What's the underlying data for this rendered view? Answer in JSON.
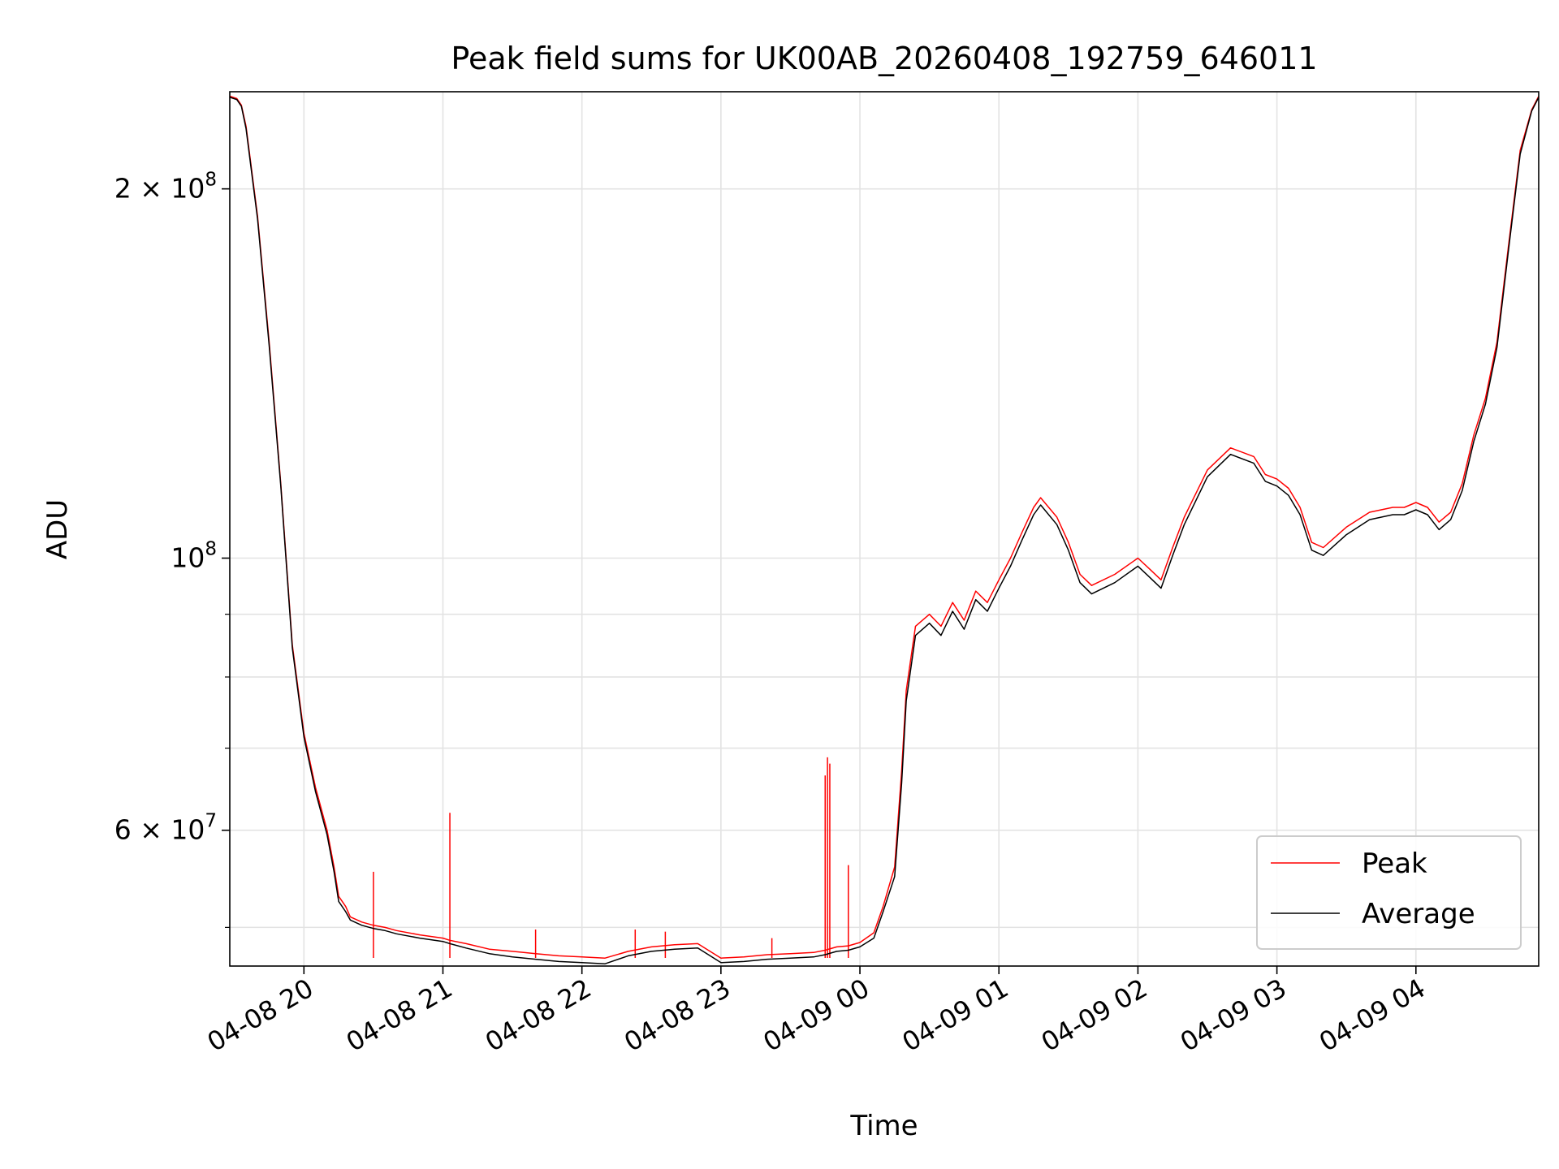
{
  "chart_data": {
    "type": "line",
    "title": "Peak field sums for UK00AB_20260408_192759_646011",
    "xlabel": "Time",
    "ylabel": "ADU",
    "yscale": "log",
    "ylim": [
      46500000,
      240000000
    ],
    "xlim": [
      "2026-04-08 19:28",
      "2026-04-09 04:53"
    ],
    "grid": true,
    "legend": "bottom-right",
    "colors": {
      "Peak": "#ff0000",
      "Average": "#000000"
    },
    "x_ticks": [
      "04-08 20",
      "04-08 21",
      "04-08 22",
      "04-08 23",
      "04-09 00",
      "04-09 01",
      "04-09 02",
      "04-09 03",
      "04-09 04"
    ],
    "y_ticks": [
      {
        "value": 200000000,
        "mantissa": "2",
        "exponent": "8"
      },
      {
        "value": 100000000,
        "mantissa": "",
        "exponent": "8"
      },
      {
        "value": 60000000,
        "mantissa": "6",
        "exponent": "7"
      }
    ],
    "y_minor_ticks": [
      50000000,
      70000000,
      80000000,
      90000000
    ],
    "series": [
      {
        "name": "Peak",
        "x": [
          "2026-04-08 19:28",
          "2026-04-08 19:31",
          "2026-04-08 19:33",
          "2026-04-08 19:35",
          "2026-04-08 19:40",
          "2026-04-08 19:45",
          "2026-04-08 19:50",
          "2026-04-08 19:55",
          "2026-04-08 20:00",
          "2026-04-08 20:05",
          "2026-04-08 20:10",
          "2026-04-08 20:13",
          "2026-04-08 20:15",
          "2026-04-08 20:18",
          "2026-04-08 20:20",
          "2026-04-08 20:25",
          "2026-04-08 20:30",
          "2026-04-08 20:35",
          "2026-04-08 20:40",
          "2026-04-08 20:50",
          "2026-04-08 21:00",
          "2026-04-08 21:03",
          "2026-04-08 21:10",
          "2026-04-08 21:20",
          "2026-04-08 21:30",
          "2026-04-08 21:40",
          "2026-04-08 21:50",
          "2026-04-08 22:00",
          "2026-04-08 22:10",
          "2026-04-08 22:20",
          "2026-04-08 22:30",
          "2026-04-08 22:40",
          "2026-04-08 22:50",
          "2026-04-08 23:00",
          "2026-04-08 23:10",
          "2026-04-08 23:20",
          "2026-04-08 23:30",
          "2026-04-08 23:40",
          "2026-04-08 23:45",
          "2026-04-08 23:50",
          "2026-04-08 23:55",
          "2026-04-09 00:00",
          "2026-04-09 00:06",
          "2026-04-09 00:10",
          "2026-04-09 00:15",
          "2026-04-09 00:18",
          "2026-04-09 00:20",
          "2026-04-09 00:24",
          "2026-04-09 00:30",
          "2026-04-09 00:35",
          "2026-04-09 00:40",
          "2026-04-09 00:45",
          "2026-04-09 00:50",
          "2026-04-09 00:55",
          "2026-04-09 01:00",
          "2026-04-09 01:05",
          "2026-04-09 01:10",
          "2026-04-09 01:15",
          "2026-04-09 01:18",
          "2026-04-09 01:25",
          "2026-04-09 01:30",
          "2026-04-09 01:35",
          "2026-04-09 01:40",
          "2026-04-09 01:50",
          "2026-04-09 02:00",
          "2026-04-09 02:05",
          "2026-04-09 02:10",
          "2026-04-09 02:15",
          "2026-04-09 02:20",
          "2026-04-09 02:30",
          "2026-04-09 02:40",
          "2026-04-09 02:50",
          "2026-04-09 02:55",
          "2026-04-09 03:00",
          "2026-04-09 03:05",
          "2026-04-09 03:10",
          "2026-04-09 03:15",
          "2026-04-09 03:20",
          "2026-04-09 03:30",
          "2026-04-09 03:40",
          "2026-04-09 03:50",
          "2026-04-09 03:55",
          "2026-04-09 04:00",
          "2026-04-09 04:05",
          "2026-04-09 04:10",
          "2026-04-09 04:15",
          "2026-04-09 04:20",
          "2026-04-09 04:25",
          "2026-04-09 04:30",
          "2026-04-09 04:35",
          "2026-04-09 04:40",
          "2026-04-09 04:45",
          "2026-04-09 04:50",
          "2026-04-09 04:53"
        ],
        "y": [
          238000000,
          237000000,
          234000000,
          225000000,
          190000000,
          150000000,
          115000000,
          85000000,
          72000000,
          65000000,
          60000000,
          56000000,
          53000000,
          52000000,
          51000000,
          50500000,
          50200000,
          50000000,
          49700000,
          49300000,
          49000000,
          48800000,
          48500000,
          48000000,
          47800000,
          47600000,
          47400000,
          47300000,
          47200000,
          47800000,
          48200000,
          48400000,
          48500000,
          47200000,
          47300000,
          47500000,
          47600000,
          47700000,
          47900000,
          48200000,
          48300000,
          48600000,
          49500000,
          52000000,
          56000000,
          67000000,
          78000000,
          88000000,
          90000000,
          88000000,
          92000000,
          89000000,
          94000000,
          92000000,
          96000000,
          100000000,
          105000000,
          110000000,
          112000000,
          108000000,
          103000000,
          97000000,
          95000000,
          97000000,
          100000000,
          98000000,
          96000000,
          102000000,
          108000000,
          118000000,
          123000000,
          121000000,
          117000000,
          116000000,
          114000000,
          110000000,
          103000000,
          102000000,
          106000000,
          109000000,
          110000000,
          110000000,
          111000000,
          110000000,
          107000000,
          109000000,
          115000000,
          126000000,
          135000000,
          150000000,
          180000000,
          215000000,
          232000000,
          238000000
        ],
        "spikes": [
          {
            "x": "2026-04-08 20:30",
            "y": 55500000
          },
          {
            "x": "2026-04-08 21:03",
            "y": 62000000
          },
          {
            "x": "2026-04-08 21:40",
            "y": 49800000
          },
          {
            "x": "2026-04-08 22:23",
            "y": 49800000
          },
          {
            "x": "2026-04-08 22:36",
            "y": 49600000
          },
          {
            "x": "2026-04-08 23:22",
            "y": 49000000
          },
          {
            "x": "2026-04-08 23:45",
            "y": 66500000
          },
          {
            "x": "2026-04-08 23:46",
            "y": 68800000
          },
          {
            "x": "2026-04-08 23:47",
            "y": 68000000
          },
          {
            "x": "2026-04-08 23:55",
            "y": 56200000
          }
        ]
      },
      {
        "name": "Average",
        "x": [
          "2026-04-08 19:28",
          "2026-04-08 19:31",
          "2026-04-08 19:33",
          "2026-04-08 19:35",
          "2026-04-08 19:40",
          "2026-04-08 19:45",
          "2026-04-08 19:50",
          "2026-04-08 19:55",
          "2026-04-08 20:00",
          "2026-04-08 20:05",
          "2026-04-08 20:10",
          "2026-04-08 20:13",
          "2026-04-08 20:15",
          "2026-04-08 20:18",
          "2026-04-08 20:20",
          "2026-04-08 20:25",
          "2026-04-08 20:30",
          "2026-04-08 20:35",
          "2026-04-08 20:40",
          "2026-04-08 20:50",
          "2026-04-08 21:00",
          "2026-04-08 21:03",
          "2026-04-08 21:10",
          "2026-04-08 21:20",
          "2026-04-08 21:30",
          "2026-04-08 21:40",
          "2026-04-08 21:50",
          "2026-04-08 22:00",
          "2026-04-08 22:10",
          "2026-04-08 22:20",
          "2026-04-08 22:30",
          "2026-04-08 22:40",
          "2026-04-08 22:50",
          "2026-04-08 23:00",
          "2026-04-08 23:10",
          "2026-04-08 23:20",
          "2026-04-08 23:30",
          "2026-04-08 23:40",
          "2026-04-08 23:45",
          "2026-04-08 23:50",
          "2026-04-08 23:55",
          "2026-04-09 00:00",
          "2026-04-09 00:06",
          "2026-04-09 00:10",
          "2026-04-09 00:15",
          "2026-04-09 00:18",
          "2026-04-09 00:20",
          "2026-04-09 00:24",
          "2026-04-09 00:30",
          "2026-04-09 00:35",
          "2026-04-09 00:40",
          "2026-04-09 00:45",
          "2026-04-09 00:50",
          "2026-04-09 00:55",
          "2026-04-09 01:00",
          "2026-04-09 01:05",
          "2026-04-09 01:10",
          "2026-04-09 01:15",
          "2026-04-09 01:18",
          "2026-04-09 01:25",
          "2026-04-09 01:30",
          "2026-04-09 01:35",
          "2026-04-09 01:40",
          "2026-04-09 01:50",
          "2026-04-09 02:00",
          "2026-04-09 02:05",
          "2026-04-09 02:10",
          "2026-04-09 02:15",
          "2026-04-09 02:20",
          "2026-04-09 02:30",
          "2026-04-09 02:40",
          "2026-04-09 02:50",
          "2026-04-09 02:55",
          "2026-04-09 03:00",
          "2026-04-09 03:05",
          "2026-04-09 03:10",
          "2026-04-09 03:15",
          "2026-04-09 03:20",
          "2026-04-09 03:30",
          "2026-04-09 03:40",
          "2026-04-09 03:50",
          "2026-04-09 03:55",
          "2026-04-09 04:00",
          "2026-04-09 04:05",
          "2026-04-09 04:10",
          "2026-04-09 04:15",
          "2026-04-09 04:20",
          "2026-04-09 04:25",
          "2026-04-09 04:30",
          "2026-04-09 04:35",
          "2026-04-09 04:40",
          "2026-04-09 04:45",
          "2026-04-09 04:50",
          "2026-04-09 04:53"
        ],
        "y": [
          237500000,
          236500000,
          233500000,
          224000000,
          189000000,
          149000000,
          114500000,
          84500000,
          71500000,
          64500000,
          59500000,
          55500000,
          52500000,
          51500000,
          50700000,
          50200000,
          49900000,
          49700000,
          49400000,
          49000000,
          48700000,
          48500000,
          48100000,
          47600000,
          47300000,
          47100000,
          46900000,
          46800000,
          46700000,
          47400000,
          47800000,
          48000000,
          48100000,
          46800000,
          46900000,
          47100000,
          47200000,
          47300000,
          47500000,
          47800000,
          47900000,
          48200000,
          49000000,
          51500000,
          55000000,
          65500000,
          76500000,
          86500000,
          88500000,
          86500000,
          90500000,
          87500000,
          92500000,
          90500000,
          94500000,
          98500000,
          103500000,
          108500000,
          110500000,
          106500000,
          101500000,
          95500000,
          93500000,
          95500000,
          98500000,
          96500000,
          94500000,
          100500000,
          106500000,
          116500000,
          121500000,
          119500000,
          115500000,
          114500000,
          112500000,
          108500000,
          101500000,
          100500000,
          104500000,
          107500000,
          108500000,
          108500000,
          109500000,
          108500000,
          105500000,
          107500000,
          113500000,
          124500000,
          133500000,
          148500000,
          178500000,
          213500000,
          231500000,
          237500000
        ]
      }
    ]
  }
}
